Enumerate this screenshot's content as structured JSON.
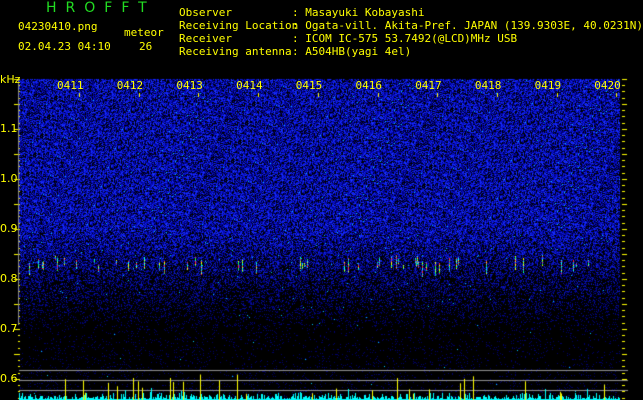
{
  "header": {
    "app_title": "HROFFT",
    "filename": "04230410.png",
    "datetime": "02.04.23 04:10",
    "meteor_label": "meteor",
    "meteor_count": "26"
  },
  "station": [
    {
      "label": "Observer",
      "value": ": Masayuki Kobayashi"
    },
    {
      "label": "Receiving Location",
      "value": ": Ogata-vill. Akita-Pref. JAPAN (139.9303E, 40.0231N)"
    },
    {
      "label": "Receiver",
      "value": ": ICOM IC-575 53.7492(@LCD)MHz USB"
    },
    {
      "label": "Receiving antenna",
      "value": ": A504HB(yagi 4el)"
    }
  ],
  "chart_data": {
    "type": "heatmap",
    "ylabel": "kHz",
    "ylim": [
      0.55,
      1.2
    ],
    "y_ticks": [
      "1.1",
      "1.0",
      "0.9",
      "0.8",
      "0.7",
      "0.6"
    ],
    "x_ticks": [
      "0411",
      "0412",
      "0413",
      "0414",
      "0415",
      "0416",
      "0417",
      "0418",
      "0419",
      "0420"
    ],
    "echo_band_khz": 0.82,
    "colors": {
      "noise": "#2233ff",
      "trace": "#00ffff",
      "spike": "#ffff00",
      "grid": "#909090",
      "axis_text": "#ffff00"
    }
  }
}
